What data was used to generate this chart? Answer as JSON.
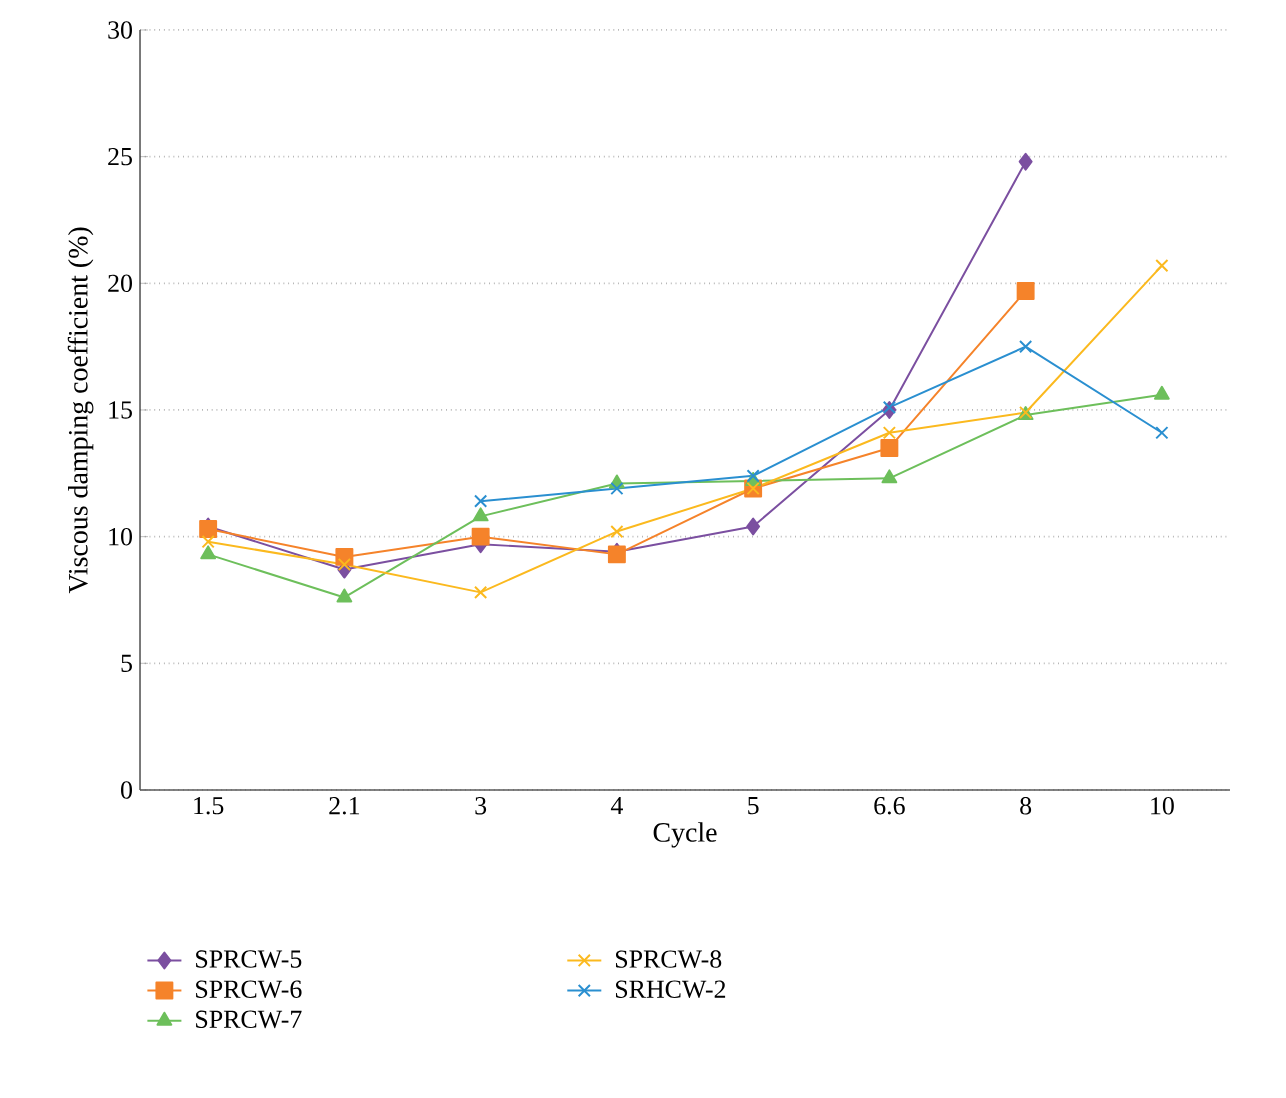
{
  "chart_data": {
    "type": "line",
    "xlabel": "Cycle",
    "ylabel": "Viscous damping coefficient (%)",
    "categories": [
      "1.5",
      "2.1",
      "3",
      "4",
      "5",
      "6.6",
      "8",
      "10"
    ],
    "ylim": [
      0,
      30
    ],
    "yticks": [
      0,
      5,
      10,
      15,
      20,
      25,
      30
    ],
    "grid": "y",
    "legend": "bottom",
    "line_style": "solid",
    "series": [
      {
        "name": "SPRCW-5",
        "color": "#7b4fa0",
        "marker": "diamond",
        "values": [
          10.4,
          8.7,
          9.7,
          9.4,
          10.4,
          15.0,
          24.8,
          null
        ]
      },
      {
        "name": "SPRCW-6",
        "color": "#f5832a",
        "marker": "square",
        "values": [
          10.3,
          9.2,
          10.0,
          9.3,
          11.9,
          13.5,
          19.7,
          null
        ]
      },
      {
        "name": "SPRCW-7",
        "color": "#6dbf5b",
        "marker": "triangle",
        "values": [
          9.3,
          7.6,
          10.8,
          12.1,
          12.2,
          12.3,
          14.8,
          15.6
        ]
      },
      {
        "name": "SPRCW-8",
        "color": "#fbb91e",
        "marker": "cross",
        "values": [
          9.8,
          8.9,
          7.8,
          10.2,
          11.9,
          14.1,
          14.9,
          20.7
        ]
      },
      {
        "name": "SRHCW-2",
        "color": "#2a8fd0",
        "marker": "cross",
        "values": [
          null,
          null,
          11.4,
          11.9,
          12.4,
          15.1,
          17.5,
          14.1
        ]
      }
    ]
  }
}
